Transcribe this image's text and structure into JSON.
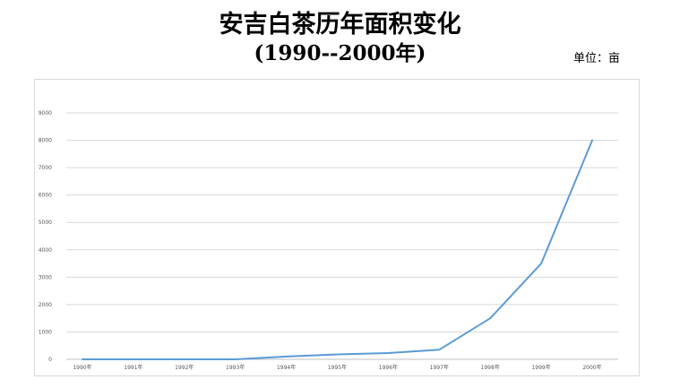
{
  "title": {
    "line1": "安吉白茶历年面积变化",
    "line2": "(1990--2000年)"
  },
  "unit_label": "单位：亩",
  "colors": {
    "series_line": "#5b9bd5",
    "gridline": "#d9d9d9",
    "tick_text": "#595959"
  },
  "chart_data": {
    "type": "line",
    "title": "安吉白茶历年面积变化",
    "subtitle": "(1990--2000年)",
    "unit": "单位：亩",
    "categories": [
      "1990年",
      "1991年",
      "1992年",
      "1993年",
      "1994年",
      "1995年",
      "1996年",
      "1997年",
      "1998年",
      "1999年",
      "2000年"
    ],
    "values": [
      0,
      0,
      0,
      0,
      100,
      180,
      230,
      350,
      1500,
      3500,
      8000
    ],
    "y_ticks": [
      0,
      1000,
      2000,
      3000,
      4000,
      5000,
      6000,
      7000,
      8000,
      9000
    ],
    "ylim": [
      0,
      9000
    ],
    "grid": true,
    "legend": "none"
  }
}
